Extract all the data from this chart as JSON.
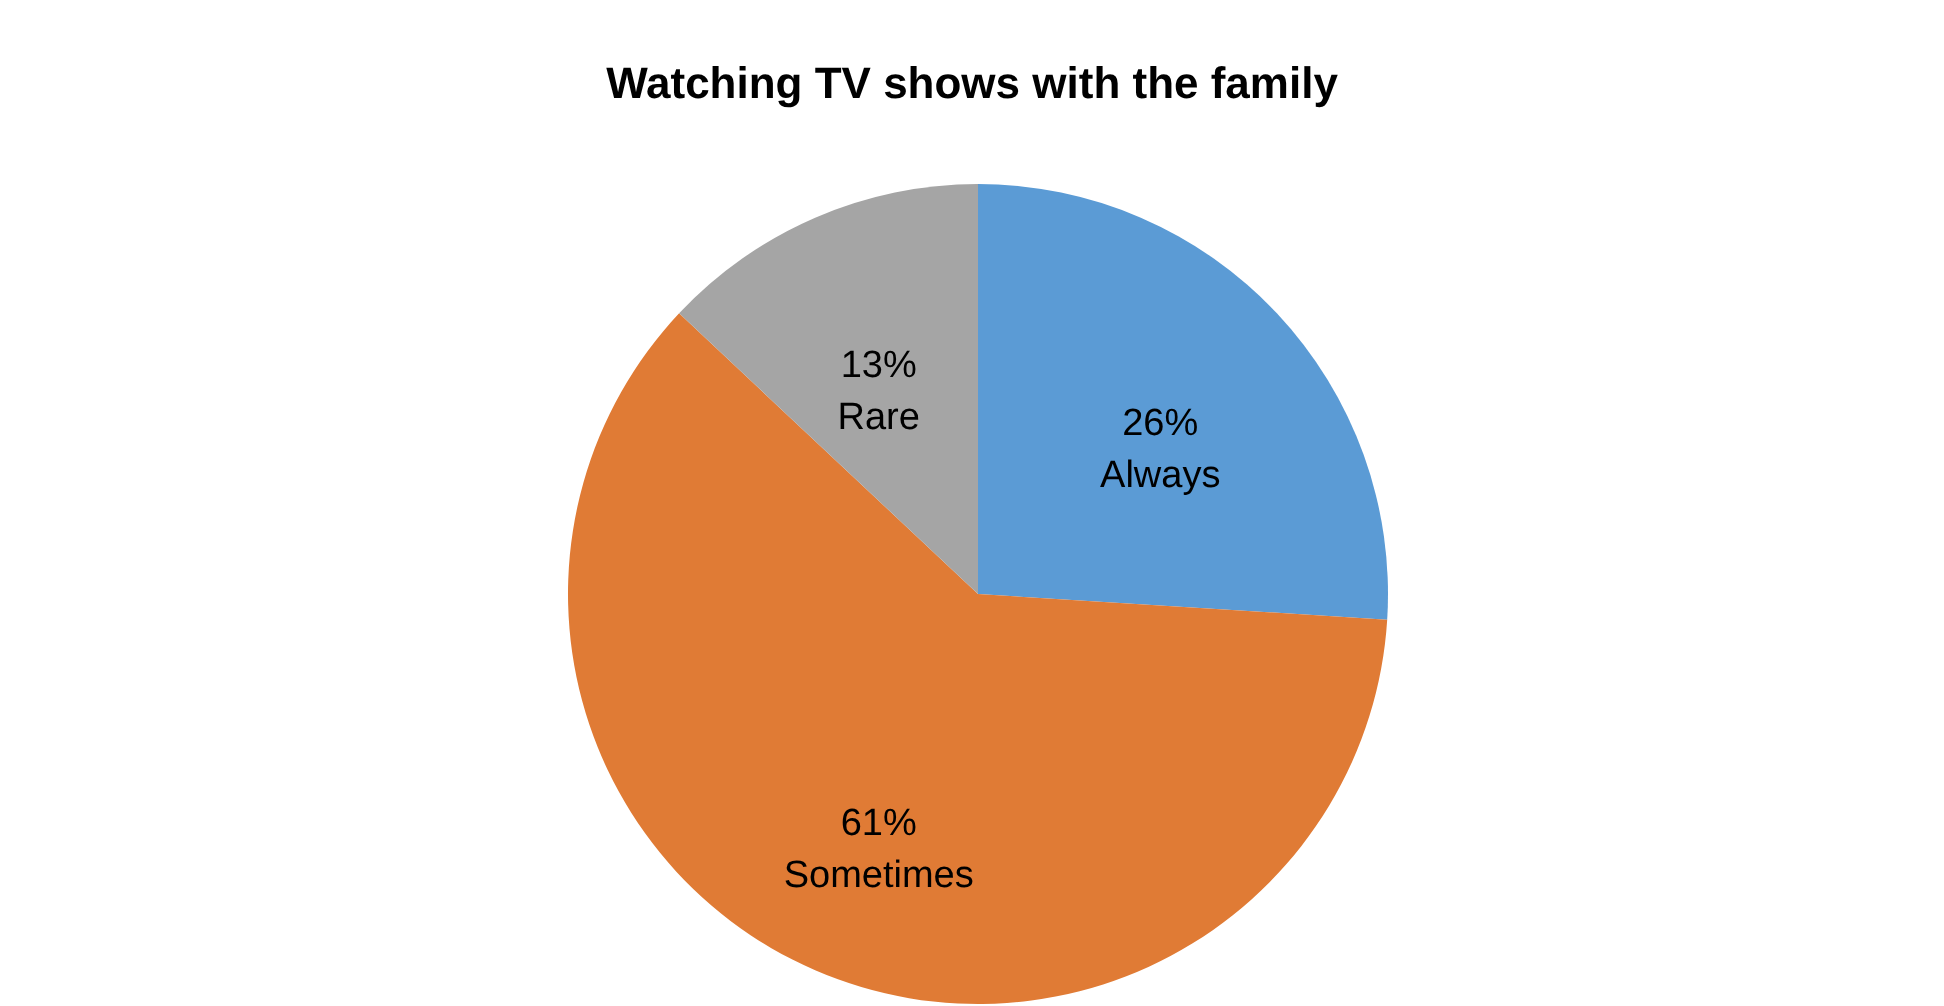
{
  "chart_data": {
    "type": "pie",
    "title": "Watching TV shows with the family",
    "categories": [
      "Always",
      "Sometimes",
      "Rare"
    ],
    "values": [
      26,
      61,
      13
    ],
    "value_labels": [
      "26%",
      "61%",
      "13%"
    ],
    "colors": [
      "#5b9bd5",
      "#e07b35",
      "#a5a5a5"
    ],
    "legend": false
  }
}
